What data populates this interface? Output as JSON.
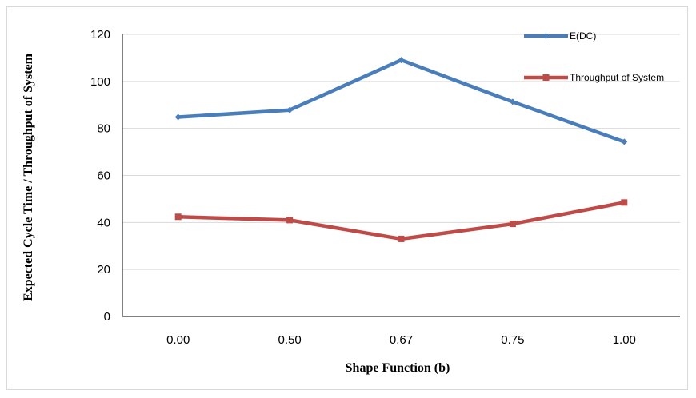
{
  "chart_data": {
    "type": "line",
    "title": "",
    "xlabel": "Shape Function (b)",
    "ylabel": "Expected Cycle Time / Throughput of System",
    "categories": [
      "0.00",
      "0.50",
      "0.67",
      "0.75",
      "1.00"
    ],
    "ylim": [
      0,
      120
    ],
    "yticks": [
      "0",
      "20",
      "40",
      "60",
      "80",
      "100",
      "120"
    ],
    "grid": "horizontal",
    "legend_position": "top-right",
    "series": [
      {
        "name": "E(DC)",
        "color": "#4a7ebb",
        "marker": "diamond",
        "values": [
          84.8,
          87.8,
          109.1,
          91.3,
          74.3
        ]
      },
      {
        "name": "Throughput of System",
        "color": "#be4b48",
        "marker": "square",
        "values": [
          42.4,
          41.0,
          33.0,
          39.4,
          48.5
        ]
      }
    ]
  }
}
